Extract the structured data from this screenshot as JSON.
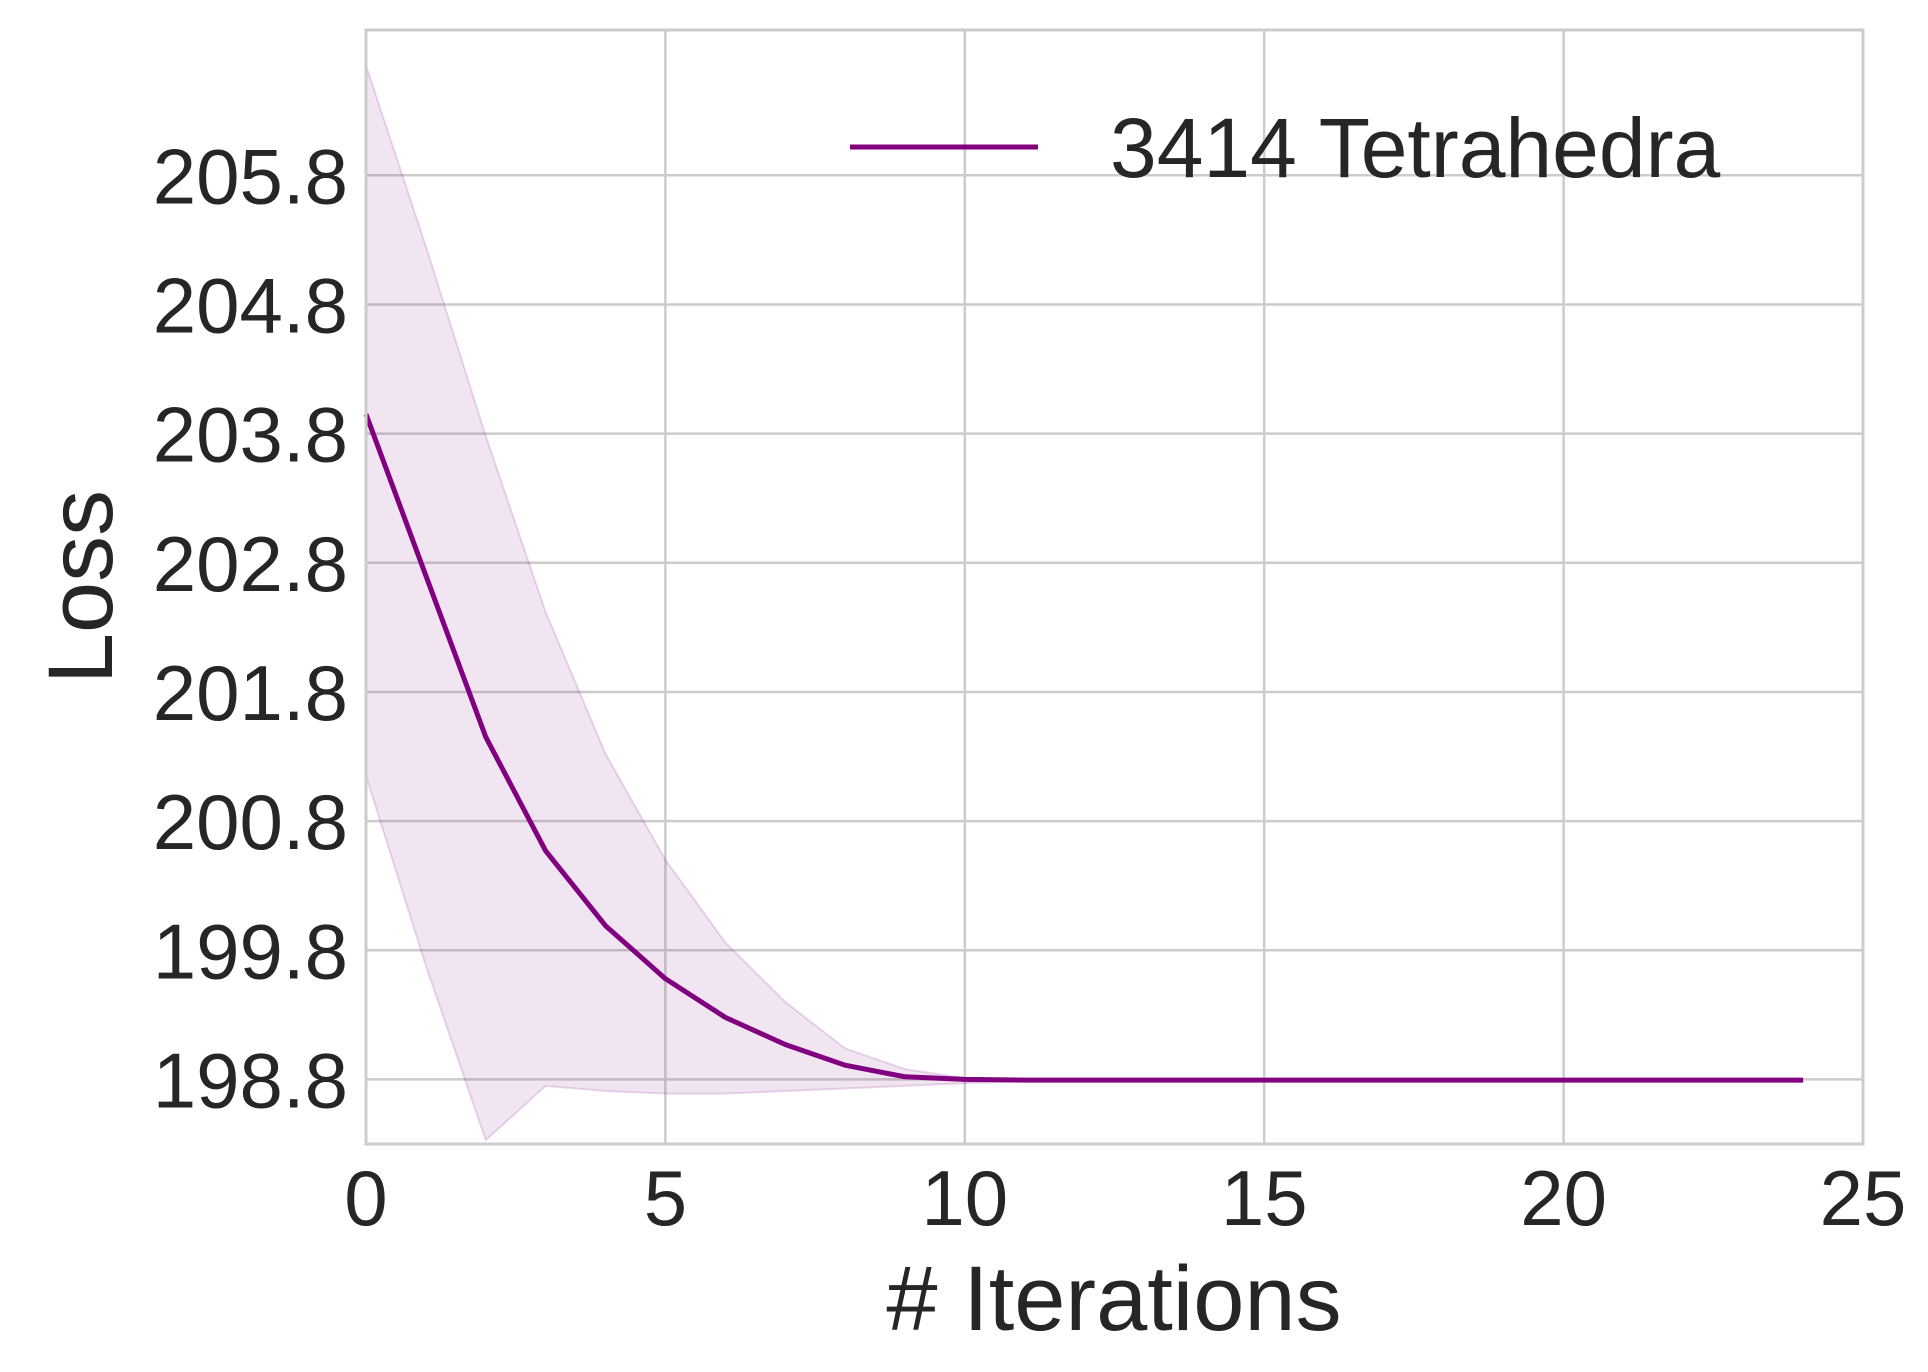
{
  "chart_data": {
    "type": "line",
    "xlabel": "# Iterations",
    "ylabel": "Loss",
    "xlim": [
      0,
      25
    ],
    "ylim": [
      198.3,
      206.925
    ],
    "xticks": [
      0,
      5,
      10,
      15,
      20,
      25
    ],
    "xtick_labels": [
      "0",
      "5",
      "10",
      "15",
      "20",
      "25"
    ],
    "yticks": [
      198.8,
      199.8,
      200.8,
      201.8,
      202.8,
      203.8,
      204.8,
      205.8
    ],
    "ytick_labels": [
      "198.8",
      "199.8",
      "200.8",
      "201.8",
      "202.8",
      "203.8",
      "204.8",
      "205.8"
    ],
    "grid": true,
    "legend_position": "top-right",
    "series": [
      {
        "name": "3414 Tetrahedra",
        "color": "#800080",
        "band_color": "#800080",
        "x": [
          0,
          1,
          2,
          3,
          4,
          5,
          6,
          7,
          8,
          9,
          10,
          11,
          12,
          13,
          14,
          15,
          16,
          17,
          18,
          19,
          20,
          21,
          22,
          23,
          24
        ],
        "values": [
          203.95,
          202.7,
          201.45,
          200.57,
          199.99,
          199.58,
          199.28,
          199.07,
          198.91,
          198.82,
          198.8,
          198.795,
          198.795,
          198.795,
          198.795,
          198.795,
          198.795,
          198.795,
          198.795,
          198.795,
          198.795,
          198.795,
          198.795,
          198.795,
          198.795
        ],
        "upper": [
          206.65,
          205.25,
          203.78,
          202.42,
          201.32,
          200.5,
          199.86,
          199.4,
          199.04,
          198.88,
          198.81,
          198.8,
          198.795,
          198.795,
          198.795,
          198.795,
          198.795,
          198.795,
          198.795,
          198.795,
          198.795,
          198.795,
          198.795,
          198.795,
          198.795
        ],
        "lower": [
          201.15,
          199.68,
          198.33,
          198.75,
          198.71,
          198.69,
          198.69,
          198.71,
          198.73,
          198.75,
          198.77,
          198.785,
          198.795,
          198.795,
          198.795,
          198.795,
          198.795,
          198.795,
          198.795,
          198.795,
          198.795,
          198.795,
          198.795,
          198.795,
          198.795
        ]
      }
    ]
  }
}
